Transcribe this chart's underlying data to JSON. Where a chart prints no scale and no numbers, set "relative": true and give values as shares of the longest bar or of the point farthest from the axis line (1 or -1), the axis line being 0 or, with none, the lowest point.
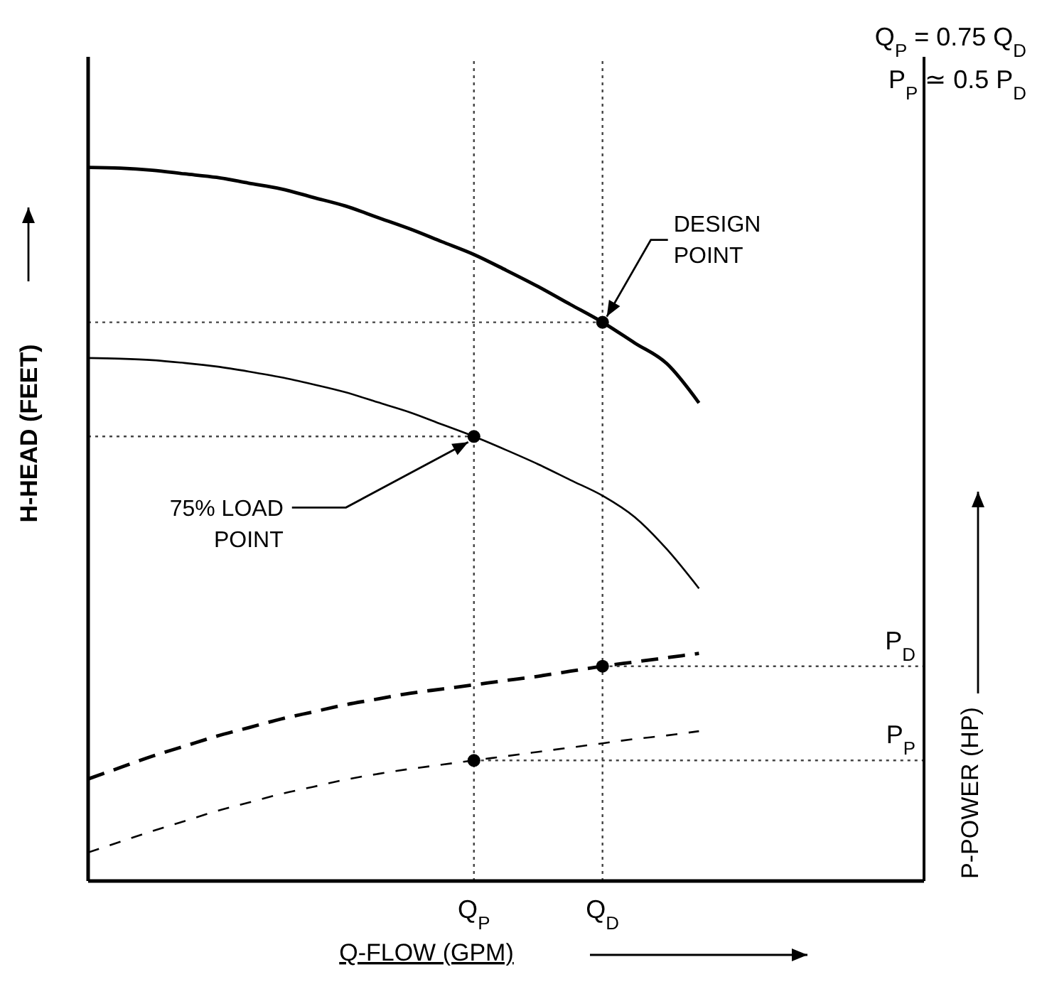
{
  "chart_data": {
    "type": "line",
    "relative": true,
    "xlabel": "Q-FLOW (GPM)",
    "ylabel": "H-HEAD (FEET)",
    "y2label": "P-POWER (HP)",
    "categories": [
      null,
      null,
      null,
      null,
      null,
      null,
      null,
      null,
      null,
      null,
      null,
      null,
      "Q$_{P}$",
      null,
      null,
      null,
      "Q$_{D}$",
      null,
      null,
      null,
      null,
      null,
      null,
      null,
      null,
      null,
      null
    ],
    "series": [
      {
        "color": "#000000",
        "line_style": "solid",
        "values": [
          1.0,
          0.999,
          0.996,
          0.991,
          0.986,
          0.978,
          0.97,
          0.958,
          0.946,
          0.93,
          0.914,
          0.896,
          0.878,
          0.856,
          0.833,
          0.808,
          0.783,
          0.754,
          0.725,
          0.67,
          null,
          null,
          null,
          null,
          null,
          null,
          null
        ]
      },
      {
        "color": "#000000",
        "line_style": "solid",
        "values": [
          0.733,
          0.732,
          0.73,
          0.726,
          0.721,
          0.714,
          0.706,
          0.696,
          0.685,
          0.671,
          0.657,
          0.64,
          0.623,
          0.604,
          0.584,
          0.562,
          0.54,
          0.51,
          0.465,
          0.41,
          null,
          null,
          null,
          null,
          null,
          null,
          null
        ]
      },
      {
        "color": "#000000",
        "line_style": "dashed",
        "values": [
          0.143,
          0.159,
          0.175,
          0.189,
          0.203,
          0.215,
          0.227,
          0.237,
          0.247,
          0.255,
          0.263,
          0.269,
          0.275,
          0.281,
          0.287,
          0.294,
          0.301,
          0.307,
          0.313,
          0.319,
          null,
          null,
          null,
          null,
          null,
          null,
          null
        ]
      },
      {
        "color": "#000000",
        "line_style": "dashed",
        "values": [
          0.04,
          0.055,
          0.07,
          0.084,
          0.098,
          0.11,
          0.122,
          0.132,
          0.142,
          0.15,
          0.157,
          0.163,
          0.169,
          0.175,
          0.181,
          0.187,
          0.193,
          0.199,
          0.204,
          0.21,
          null,
          null,
          null,
          null,
          null,
          null,
          null
        ]
      },
      {
        "color": "#444444",
        "line_style": "dotted",
        "values": [
          0.783,
          0.783,
          0.783,
          0.783,
          0.783,
          0.783,
          0.783,
          0.783,
          0.783,
          0.783,
          0.783,
          0.783,
          0.783,
          0.783,
          0.783,
          0.783,
          0.783,
          null,
          null,
          null,
          null,
          null,
          null,
          null,
          null,
          null,
          null
        ]
      },
      {
        "color": "#444444",
        "line_style": "dotted",
        "values": [
          0.623,
          0.623,
          0.623,
          0.623,
          0.623,
          0.623,
          0.623,
          0.623,
          0.623,
          0.623,
          0.623,
          0.623,
          0.623,
          null,
          null,
          null,
          null,
          null,
          null,
          null,
          null,
          null,
          null,
          null,
          null,
          null,
          null
        ]
      },
      {
        "color": "#444444",
        "line_style": "dotted",
        "values": [
          null,
          null,
          null,
          null,
          null,
          null,
          null,
          null,
          null,
          null,
          null,
          null,
          null,
          null,
          null,
          null,
          0.301,
          0.301,
          0.301,
          0.301,
          0.301,
          0.301,
          0.301,
          0.301,
          0.301,
          0.301,
          0.301
        ]
      },
      {
        "color": "#444444",
        "line_style": "dotted",
        "values": [
          null,
          null,
          null,
          null,
          null,
          null,
          null,
          null,
          null,
          null,
          null,
          null,
          0.169,
          0.169,
          0.169,
          0.169,
          0.169,
          0.169,
          0.169,
          0.169,
          0.169,
          0.169,
          0.169,
          0.169,
          0.169,
          0.169,
          0.169
        ]
      },
      {
        "type": "scatter",
        "color": "#000000",
        "marker": "circle",
        "x": [
          "Q$_{D}$",
          "Q$_{P}$",
          "Q$_{D}$",
          "Q$_{P}$"
        ],
        "values": [
          0.783,
          0.623,
          0.301,
          0.169
        ]
      }
    ],
    "ref_lines": [
      {
        "axis": "x",
        "value": "Q$_{P}$",
        "color": "#444444",
        "line_style": "dotted"
      },
      {
        "axis": "x",
        "value": "Q$_{D}$",
        "color": "#444444",
        "line_style": "dotted"
      }
    ],
    "annotations": [
      "Q$_{P}$ = 0.75 Q$_{D}$",
      "P$_{P}$ ≃ 0.5   P$_{D}$",
      {
        "text": "DESIGN\nPOINT",
        "x": "Q$_{D}$",
        "y": 0.783
      },
      {
        "text": "75% LOAD\nPOINT",
        "x": "Q$_{P}$",
        "y": 0.623
      },
      {
        "text": "P$_{D}$",
        "y": 0.301
      },
      {
        "text": "P$_{P}$",
        "y": 0.169
      }
    ]
  }
}
